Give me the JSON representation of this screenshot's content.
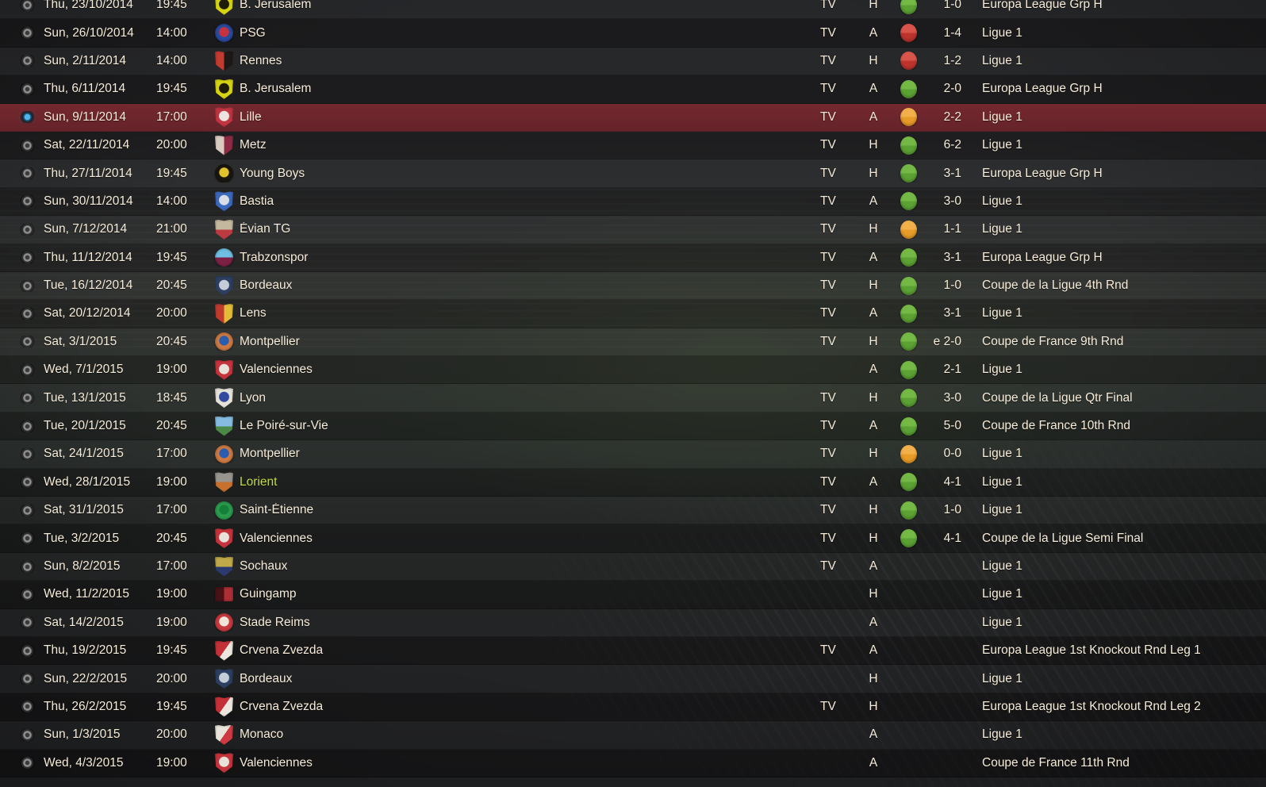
{
  "ui": {
    "tv_label": "TV",
    "colors": {
      "text": "#f7ecd9",
      "selected_row": "linear-gradient(180deg,#74282e 0%,#65232a 100%)",
      "highlighted_opponent_text": "#c4da45",
      "selected_radio_dot": "#4fb6ee",
      "result": {
        "win": [
          "#74b945",
          "#5ba133"
        ],
        "loss": [
          "#d9544b",
          "#bd342d"
        ],
        "draw": [
          "#f2b04b",
          "#e89b26"
        ]
      }
    }
  },
  "fixtures": [
    {
      "date": "Thu, 23/10/2014",
      "time": "19:45",
      "opponent": "B. Jerusalem",
      "badge": {
        "shape": "shield",
        "split": "ring",
        "colors": [
          "#d6d313",
          "#1e1c08"
        ]
      },
      "tv": true,
      "venue": "H",
      "result": "win",
      "score": "1-0",
      "competition": "Europa League Grp H"
    },
    {
      "date": "Sun, 26/10/2014",
      "time": "14:00",
      "opponent": "PSG",
      "badge": {
        "shape": "circle",
        "split": "ring",
        "colors": [
          "#2a4a9e",
          "#c8323c"
        ]
      },
      "tv": true,
      "venue": "A",
      "result": "loss",
      "score": "1-4",
      "competition": "Ligue 1"
    },
    {
      "date": "Sun, 2/11/2014",
      "time": "14:00",
      "opponent": "Rennes",
      "badge": {
        "shape": "shield",
        "split": "h",
        "colors": [
          "#c23a30",
          "#1d1815"
        ]
      },
      "tv": true,
      "venue": "H",
      "result": "loss",
      "score": "1-2",
      "competition": "Ligue 1"
    },
    {
      "date": "Thu, 6/11/2014",
      "time": "19:45",
      "opponent": "B. Jerusalem",
      "badge": {
        "shape": "shield",
        "split": "ring",
        "colors": [
          "#d6d313",
          "#1e1c08"
        ]
      },
      "tv": true,
      "venue": "A",
      "result": "win",
      "score": "2-0",
      "competition": "Europa League Grp H"
    },
    {
      "date": "Sun, 9/11/2014",
      "time": "17:00",
      "opponent": "Lille",
      "badge": {
        "shape": "shield",
        "split": "ring",
        "colors": [
          "#bf3540",
          "#ece4de"
        ]
      },
      "tv": true,
      "venue": "A",
      "result": "draw",
      "score": "2-2",
      "competition": "Ligue 1",
      "selected": true
    },
    {
      "date": "Sat, 22/11/2014",
      "time": "20:00",
      "opponent": "Metz",
      "badge": {
        "shape": "shield",
        "split": "h",
        "colors": [
          "#d8ccc0",
          "#8e2a44"
        ]
      },
      "tv": true,
      "venue": "H",
      "result": "win",
      "score": "6-2",
      "competition": "Ligue 1"
    },
    {
      "date": "Thu, 27/11/2014",
      "time": "19:45",
      "opponent": "Young Boys",
      "badge": {
        "shape": "circle",
        "split": "ring",
        "colors": [
          "#191610",
          "#dfc22c"
        ]
      },
      "tv": true,
      "venue": "H",
      "result": "win",
      "score": "3-1",
      "competition": "Europa League Grp H"
    },
    {
      "date": "Sun, 30/11/2014",
      "time": "14:00",
      "opponent": "Bastia",
      "badge": {
        "shape": "shield",
        "split": "ring",
        "colors": [
          "#3a68bc",
          "#d8dde8"
        ]
      },
      "tv": true,
      "venue": "A",
      "result": "win",
      "score": "3-0",
      "competition": "Ligue 1"
    },
    {
      "date": "Sun, 7/12/2014",
      "time": "21:00",
      "opponent": "Évian TG",
      "badge": {
        "shape": "shield",
        "split": "v",
        "colors": [
          "#c4b89e",
          "#bd3a42"
        ]
      },
      "tv": true,
      "venue": "H",
      "result": "draw",
      "score": "1-1",
      "competition": "Ligue 1"
    },
    {
      "date": "Thu, 11/12/2014",
      "time": "19:45",
      "opponent": "Trabzonspor",
      "badge": {
        "shape": "circle",
        "split": "v",
        "colors": [
          "#6fc0e4",
          "#7c2144"
        ]
      },
      "tv": true,
      "venue": "A",
      "result": "win",
      "score": "3-1",
      "competition": "Europa League Grp H"
    },
    {
      "date": "Tue, 16/12/2014",
      "time": "20:45",
      "opponent": "Bordeaux",
      "badge": {
        "shape": "shield",
        "split": "ring",
        "colors": [
          "#2c3f63",
          "#c5cdd8"
        ]
      },
      "tv": true,
      "venue": "H",
      "result": "win",
      "score": "1-0",
      "competition": "Coupe de la Ligue 4th Rnd"
    },
    {
      "date": "Sat, 20/12/2014",
      "time": "20:00",
      "opponent": "Lens",
      "badge": {
        "shape": "shield",
        "split": "h",
        "colors": [
          "#c03a2e",
          "#e2bc38"
        ]
      },
      "tv": true,
      "venue": "A",
      "result": "win",
      "score": "3-1",
      "competition": "Ligue 1"
    },
    {
      "date": "Sat, 3/1/2015",
      "time": "20:45",
      "opponent": "Montpellier",
      "badge": {
        "shape": "circle",
        "split": "ring",
        "colors": [
          "#cd7a42",
          "#2a5cb0"
        ]
      },
      "tv": true,
      "venue": "H",
      "result": "win",
      "score": "e 2-0",
      "competition": "Coupe de France 9th Rnd"
    },
    {
      "date": "Wed, 7/1/2015",
      "time": "19:00",
      "opponent": "Valenciennes",
      "badge": {
        "shape": "shield",
        "split": "ring",
        "colors": [
          "#c5333c",
          "#e8e2da"
        ]
      },
      "tv": false,
      "venue": "A",
      "result": "win",
      "score": "2-1",
      "competition": "Ligue 1"
    },
    {
      "date": "Tue, 13/1/2015",
      "time": "18:45",
      "opponent": "Lyon",
      "badge": {
        "shape": "shield",
        "split": "ring",
        "colors": [
          "#e6e2d8",
          "#31499e"
        ]
      },
      "tv": true,
      "venue": "H",
      "result": "win",
      "score": "3-0",
      "competition": "Coupe de la Ligue Qtr Final"
    },
    {
      "date": "Tue, 20/1/2015",
      "time": "20:45",
      "opponent": "Le Poiré-sur-Vie",
      "badge": {
        "shape": "shield",
        "split": "v",
        "colors": [
          "#85bce0",
          "#4a8a46"
        ]
      },
      "tv": true,
      "venue": "A",
      "result": "win",
      "score": "5-0",
      "competition": "Coupe de France 10th Rnd"
    },
    {
      "date": "Sat, 24/1/2015",
      "time": "17:00",
      "opponent": "Montpellier",
      "badge": {
        "shape": "circle",
        "split": "ring",
        "colors": [
          "#cd7a42",
          "#2a5cb0"
        ]
      },
      "tv": true,
      "venue": "H",
      "result": "draw",
      "score": "0-0",
      "competition": "Ligue 1"
    },
    {
      "date": "Wed, 28/1/2015",
      "time": "19:00",
      "opponent": "Lorient",
      "badge": {
        "shape": "shield",
        "split": "v",
        "colors": [
          "#98948e",
          "#c8702e"
        ]
      },
      "tv": true,
      "venue": "A",
      "result": "win",
      "score": "4-1",
      "competition": "Ligue 1",
      "highlight_opponent": true
    },
    {
      "date": "Sat, 31/1/2015",
      "time": "17:00",
      "opponent": "Saint-Étienne",
      "badge": {
        "shape": "circle",
        "split": "ring",
        "colors": [
          "#2c9c4c",
          "#15803a"
        ]
      },
      "tv": true,
      "venue": "H",
      "result": "win",
      "score": "1-0",
      "competition": "Ligue 1"
    },
    {
      "date": "Tue, 3/2/2015",
      "time": "20:45",
      "opponent": "Valenciennes",
      "badge": {
        "shape": "shield",
        "split": "ring",
        "colors": [
          "#c5333c",
          "#e8e2da"
        ]
      },
      "tv": true,
      "venue": "H",
      "result": "win",
      "score": "4-1",
      "competition": "Coupe de la Ligue Semi Final"
    },
    {
      "date": "Sun, 8/2/2015",
      "time": "17:00",
      "opponent": "Sochaux",
      "badge": {
        "shape": "shield",
        "split": "v",
        "colors": [
          "#c0a948",
          "#2a3a6e"
        ]
      },
      "tv": true,
      "venue": "A",
      "result": "",
      "score": "",
      "competition": "Ligue 1"
    },
    {
      "date": "Wed, 11/2/2015",
      "time": "19:00",
      "opponent": "Guingamp",
      "badge": {
        "shape": "rect",
        "split": "h",
        "colors": [
          "#4a1216",
          "#ae2e36"
        ]
      },
      "tv": false,
      "venue": "H",
      "result": "",
      "score": "",
      "competition": "Ligue 1"
    },
    {
      "date": "Sat, 14/2/2015",
      "time": "19:00",
      "opponent": "Stade Reims",
      "badge": {
        "shape": "circle",
        "split": "ring",
        "colors": [
          "#c73a3e",
          "#efe6da"
        ]
      },
      "tv": false,
      "venue": "A",
      "result": "",
      "score": "",
      "competition": "Ligue 1"
    },
    {
      "date": "Thu, 19/2/2015",
      "time": "19:45",
      "opponent": "Crvena Zvezda",
      "badge": {
        "shape": "shield",
        "split": "d",
        "colors": [
          "#c33038",
          "#ece6de"
        ]
      },
      "tv": true,
      "venue": "A",
      "result": "",
      "score": "",
      "competition": "Europa League 1st Knockout Rnd Leg 1"
    },
    {
      "date": "Sun, 22/2/2015",
      "time": "20:00",
      "opponent": "Bordeaux",
      "badge": {
        "shape": "shield",
        "split": "ring",
        "colors": [
          "#2c3f63",
          "#c5cdd8"
        ]
      },
      "tv": false,
      "venue": "H",
      "result": "",
      "score": "",
      "competition": "Ligue 1"
    },
    {
      "date": "Thu, 26/2/2015",
      "time": "19:45",
      "opponent": "Crvena Zvezda",
      "badge": {
        "shape": "shield",
        "split": "d",
        "colors": [
          "#c33038",
          "#ece6de"
        ]
      },
      "tv": true,
      "venue": "H",
      "result": "",
      "score": "",
      "competition": "Europa League 1st Knockout Rnd Leg 2"
    },
    {
      "date": "Sun, 1/3/2015",
      "time": "20:00",
      "opponent": "Monaco",
      "badge": {
        "shape": "shield",
        "split": "d",
        "colors": [
          "#e8e4da",
          "#cf3a42"
        ]
      },
      "tv": false,
      "venue": "A",
      "result": "",
      "score": "",
      "competition": "Ligue 1"
    },
    {
      "date": "Wed, 4/3/2015",
      "time": "19:00",
      "opponent": "Valenciennes",
      "badge": {
        "shape": "shield",
        "split": "ring",
        "colors": [
          "#c5333c",
          "#e8e2da"
        ]
      },
      "tv": false,
      "venue": "A",
      "result": "",
      "score": "",
      "competition": "Coupe de France 11th Rnd"
    }
  ]
}
